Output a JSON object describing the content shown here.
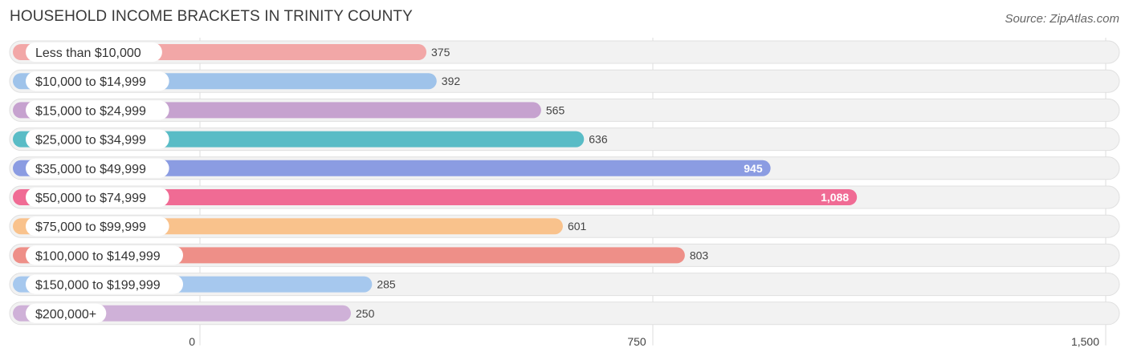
{
  "title": "HOUSEHOLD INCOME BRACKETS IN TRINITY COUNTY",
  "source": "Source: ZipAtlas.com",
  "chart_data": {
    "type": "bar",
    "orientation": "horizontal",
    "title": "HOUSEHOLD INCOME BRACKETS IN TRINITY COUNTY",
    "categories": [
      "Less than $10,000",
      "$10,000 to $14,999",
      "$15,000 to $24,999",
      "$25,000 to $34,999",
      "$35,000 to $49,999",
      "$50,000 to $74,999",
      "$75,000 to $99,999",
      "$100,000 to $149,999",
      "$150,000 to $199,999",
      "$200,000+"
    ],
    "values": [
      375,
      392,
      565,
      636,
      945,
      1088,
      601,
      803,
      285,
      250
    ],
    "value_labels": [
      "375",
      "392",
      "565",
      "636",
      "945",
      "1,088",
      "601",
      "803",
      "285",
      "250"
    ],
    "colors": [
      "#f2a7a7",
      "#9fc3ea",
      "#c6a2cf",
      "#59bcc6",
      "#8b9ce2",
      "#f06b94",
      "#f9c28c",
      "#ee8f88",
      "#a6c8ee",
      "#cfb1d8"
    ],
    "xlim": [
      0,
      1500
    ],
    "xticks": [
      0,
      750,
      1500
    ],
    "xtick_labels": [
      "0",
      "750",
      "1,500"
    ],
    "grid": true,
    "xlabel": "",
    "ylabel": ""
  }
}
